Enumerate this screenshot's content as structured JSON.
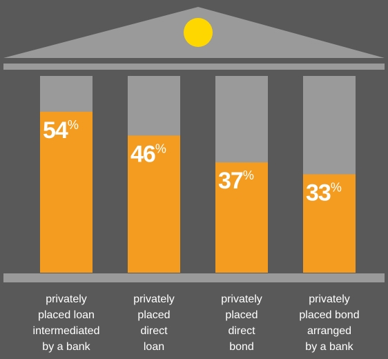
{
  "chart_data": {
    "type": "bar",
    "categories": [
      [
        "privately",
        "placed loan",
        "intermediated",
        "by a bank"
      ],
      [
        "privately",
        "placed",
        "direct",
        "loan"
      ],
      [
        "privately",
        "placed",
        "direct",
        "bond"
      ],
      [
        "privately",
        "placed bond",
        "arranged",
        "by a bank"
      ]
    ],
    "values": [
      54,
      46,
      37,
      33
    ],
    "unit": "%",
    "color": "#f39c1f",
    "ylim": [
      0,
      66
    ]
  }
}
